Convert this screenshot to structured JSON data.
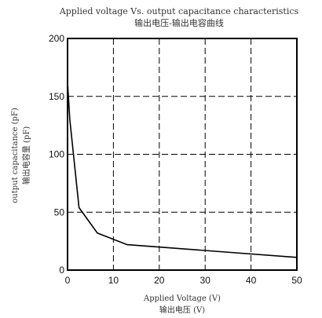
{
  "chart_data": {
    "type": "line",
    "title": "Applied voltage Vs. output capacitance characteristics",
    "subtitle": "输出电压-输出电容曲线",
    "xlabel": "Applied Voltage (V)",
    "xlabel_cn": "输出电压 (V)",
    "ylabel": "output capacitance (pF)",
    "ylabel_cn": "输出电容量 (pF)",
    "xlim": [
      0,
      50
    ],
    "ylim": [
      0,
      200
    ],
    "x_ticks": [
      "0",
      "10",
      "20",
      "30",
      "40",
      "50"
    ],
    "y_ticks": [
      "0",
      "50",
      "100",
      "150",
      "200"
    ],
    "grid": true,
    "grid_style": "dashed",
    "line_color": "#000000",
    "series": [
      {
        "x": [
          0,
          0.5,
          2.5,
          6.5,
          13,
          50
        ],
        "values": [
          162,
          130,
          54,
          32,
          22,
          11
        ]
      }
    ]
  }
}
